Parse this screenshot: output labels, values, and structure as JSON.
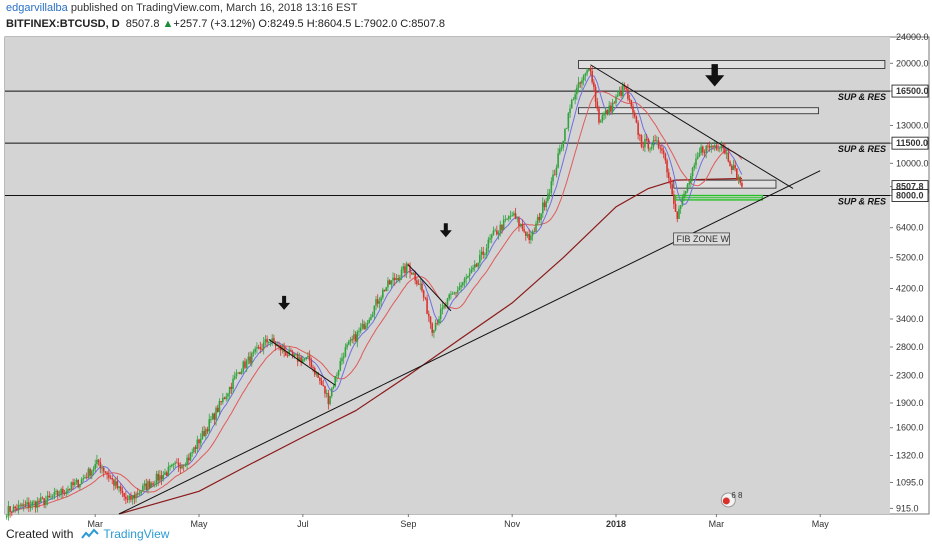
{
  "header": {
    "author": "edgarvillalba",
    "published": "published on TradingView.com, March 16, 2018 13:16 EST",
    "symbol": "BITFINEX:BTCUSD, D",
    "price": "8507.8",
    "change": "+257.7 (+3.12%)",
    "ohlc": "O:8249.5 H:8604.5 L:7902.0 C:8507.8"
  },
  "footer": {
    "created_with": "Created with",
    "brand": "TradingView"
  },
  "colors": {
    "bull": "#2fa33c",
    "bear": "#d8312b",
    "ma_fast": "#6f6fe0",
    "ma_mid": "#e05a5a",
    "ma_slow": "#8b1a1a",
    "panel_bg": "#d4d4d4",
    "fib": "#27c227"
  },
  "chart_data": {
    "type": "candlestick",
    "scale": "log",
    "ylim": [
      880,
      24000
    ],
    "y_ticks": [
      "24000.0",
      "20000.0",
      "16500.0",
      "13000.0",
      "11500.0",
      "10000.0",
      "8507.8",
      "8000.0",
      "6400.0",
      "5200.0",
      "4200.0",
      "3400.0",
      "2800.0",
      "2300.0",
      "1900.0",
      "1600.0",
      "1320.0",
      "1095.0",
      "915.0"
    ],
    "y_tick_values": [
      24000,
      20000,
      16500,
      13000,
      11500,
      10000,
      8507.8,
      8000,
      6400,
      5200,
      4200,
      3400,
      2800,
      2300,
      1900,
      1600,
      1320,
      1095,
      915
    ],
    "highlighted_ticks": [
      "16500.0",
      "11500.0",
      "8507.8",
      "8000.0"
    ],
    "x_ticks": [
      "Mar",
      "May",
      "Jul",
      "Sep",
      "Nov",
      "2018",
      "Mar",
      "May"
    ],
    "x_tick_dates": [
      "2017-03-01",
      "2017-05-01",
      "2017-07-01",
      "2017-09-01",
      "2017-11-01",
      "2018-01-01",
      "2018-03-01",
      "2018-05-01"
    ],
    "xlim": [
      "2017-01-07",
      "2018-06-11"
    ],
    "price_path": [
      [
        "2017-01-08",
        900
      ],
      [
        "2017-02-01",
        970
      ],
      [
        "2017-02-20",
        1100
      ],
      [
        "2017-03-03",
        1260
      ],
      [
        "2017-03-20",
        960
      ],
      [
        "2017-04-01",
        1080
      ],
      [
        "2017-04-25",
        1300
      ],
      [
        "2017-05-10",
        1750
      ],
      [
        "2017-05-25",
        2400
      ],
      [
        "2017-06-11",
        2950
      ],
      [
        "2017-06-25",
        2600
      ],
      [
        "2017-07-05",
        2550
      ],
      [
        "2017-07-16",
        1950
      ],
      [
        "2017-07-25",
        2700
      ],
      [
        "2017-08-05",
        3200
      ],
      [
        "2017-08-18",
        4200
      ],
      [
        "2017-09-01",
        4900
      ],
      [
        "2017-09-08",
        4300
      ],
      [
        "2017-09-15",
        3200
      ],
      [
        "2017-09-25",
        3900
      ],
      [
        "2017-10-10",
        4800
      ],
      [
        "2017-10-20",
        6000
      ],
      [
        "2017-11-01",
        7000
      ],
      [
        "2017-11-12",
        5900
      ],
      [
        "2017-11-25",
        9000
      ],
      [
        "2017-12-07",
        16000
      ],
      [
        "2017-12-17",
        19500
      ],
      [
        "2017-12-22",
        13500
      ],
      [
        "2017-12-28",
        14500
      ],
      [
        "2018-01-06",
        17000
      ],
      [
        "2018-01-16",
        11500
      ],
      [
        "2018-01-28",
        11300
      ],
      [
        "2018-02-06",
        7000
      ],
      [
        "2018-02-13",
        8800
      ],
      [
        "2018-02-20",
        11000
      ],
      [
        "2018-03-04",
        11500
      ],
      [
        "2018-03-16",
        8507.8
      ]
    ],
    "ma_slow_path": [
      [
        "2017-03-15",
        880
      ],
      [
        "2017-05-01",
        1030
      ],
      [
        "2017-06-01",
        1250
      ],
      [
        "2017-07-01",
        1500
      ],
      [
        "2017-08-01",
        1800
      ],
      [
        "2017-09-01",
        2300
      ],
      [
        "2017-10-01",
        2950
      ],
      [
        "2017-11-01",
        3800
      ],
      [
        "2017-12-01",
        5200
      ],
      [
        "2018-01-01",
        7400
      ],
      [
        "2018-01-20",
        8400
      ],
      [
        "2018-02-05",
        8900
      ],
      [
        "2018-03-16",
        9000
      ]
    ],
    "trendlines": [
      {
        "from": [
          "2017-03-15",
          880
        ],
        "to": [
          "2018-05-01",
          9500
        ]
      },
      {
        "from": [
          "2017-12-17",
          19800
        ],
        "to": [
          "2018-04-15",
          8400
        ]
      },
      {
        "from": [
          "2017-06-11",
          2950
        ],
        "to": [
          "2017-07-20",
          2150
        ]
      },
      {
        "from": [
          "2017-09-01",
          4950
        ],
        "to": [
          "2017-09-26",
          3600
        ]
      }
    ],
    "horizontal_levels": [
      {
        "value": 16500,
        "label": "SUP & RES"
      },
      {
        "value": 11500,
        "label": "SUP & RES"
      },
      {
        "value": 8000,
        "label": "SUP & RES"
      }
    ],
    "zones": [
      {
        "from": "2017-12-10",
        "to": "2018-06-08",
        "low": 19300,
        "high": 20400
      },
      {
        "from": "2017-12-10",
        "to": "2018-04-30",
        "low": 14100,
        "high": 14700
      },
      {
        "from": "2018-02-04",
        "to": "2018-04-05",
        "low": 8420,
        "high": 8900
      },
      {
        "from": "2018-02-05",
        "to": "2018-03-28",
        "low": 7760,
        "high": 8000,
        "kind": "fib"
      }
    ],
    "annotations": [
      {
        "text": "FIB ZONE W",
        "date": "2018-02-05",
        "value": 5800
      }
    ],
    "down_arrows": [
      {
        "date": "2017-06-20",
        "value": 3750
      },
      {
        "date": "2017-09-23",
        "value": 6200
      },
      {
        "date": "2018-02-28",
        "value": 18000
      }
    ],
    "badge": {
      "date": "2018-03-08",
      "value": 970,
      "label": "6 8"
    }
  }
}
